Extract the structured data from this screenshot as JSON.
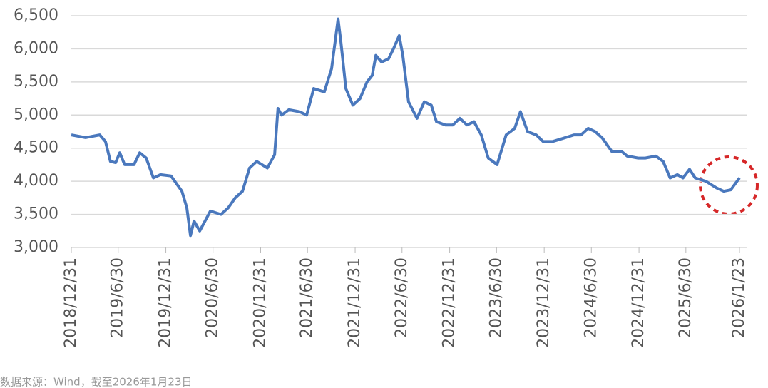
{
  "chart_data": {
    "type": "line",
    "x": [
      "2018/12/31",
      "2019/2/24",
      "2019/4/20",
      "2019/5/12",
      "2019/5/31",
      "2019/6/20",
      "2019/7/6",
      "2019/7/25",
      "2019/8/30",
      "2019/9/21",
      "2019/10/16",
      "2019/11/13",
      "2019/12/10",
      "2020/1/20",
      "2020/3/2",
      "2020/3/21",
      "2020/4/4",
      "2020/4/18",
      "2020/5/10",
      "2020/6/20",
      "2020/7/31",
      "2020/8/28",
      "2020/9/24",
      "2020/10/22",
      "2020/11/18",
      "2020/12/16",
      "2021/1/26",
      "2021/2/23",
      "2021/3/8",
      "2021/3/22",
      "2021/4/19",
      "2021/5/30",
      "2021/6/27",
      "2021/7/24",
      "2021/9/3",
      "2021/10/1",
      "2021/10/26",
      "2021/11/6",
      "2021/11/25",
      "2021/12/22",
      "2022/1/19",
      "2022/2/15",
      "2022/3/7",
      "2022/3/21",
      "2022/4/12",
      "2022/5/9",
      "2022/5/28",
      "2022/6/19",
      "2022/7/3",
      "2022/7/25",
      "2022/8/27",
      "2022/9/24",
      "2022/10/21",
      "2022/11/10",
      "2022/12/15",
      "2023/1/12",
      "2023/2/8",
      "2023/3/8",
      "2023/4/4",
      "2023/5/2",
      "2023/5/29",
      "2023/7/2",
      "2023/8/6",
      "2023/9/8",
      "2023/9/30",
      "2023/10/28",
      "2023/11/30",
      "2023/12/27",
      "2024/2/1",
      "2024/3/14",
      "2024/4/24",
      "2024/5/21",
      "2024/6/18",
      "2024/7/15",
      "2024/8/12",
      "2024/9/17",
      "2024/10/25",
      "2024/11/16",
      "2024/12/28",
      "2025/1/24",
      "2025/3/6",
      "2025/4/3",
      "2025/4/30",
      "2025/5/28",
      "2025/6/19",
      "2025/7/14",
      "2025/8/5",
      "2025/9/15",
      "2025/10/26",
      "2025/11/23",
      "2025/12/20",
      "2026/1/23"
    ],
    "values": [
      4700,
      4660,
      4700,
      4600,
      4300,
      4280,
      4430,
      4250,
      4250,
      4430,
      4350,
      4050,
      4100,
      4080,
      3850,
      3600,
      3180,
      3400,
      3250,
      3550,
      3500,
      3600,
      3750,
      3850,
      4200,
      4300,
      4200,
      4400,
      5100,
      5000,
      5080,
      5050,
      5000,
      5400,
      5350,
      5700,
      6450,
      6100,
      5400,
      5150,
      5250,
      5500,
      5600,
      5900,
      5800,
      5850,
      6000,
      6200,
      5900,
      5200,
      4950,
      5200,
      5150,
      4900,
      4850,
      4850,
      4950,
      4850,
      4900,
      4700,
      4350,
      4250,
      4700,
      4800,
      5050,
      4750,
      4700,
      4600,
      4600,
      4650,
      4700,
      4700,
      4800,
      4750,
      4650,
      4450,
      4450,
      4380,
      4350,
      4350,
      4380,
      4300,
      4050,
      4100,
      4050,
      4180,
      4050,
      4000,
      3900,
      3850,
      3870,
      4050
    ],
    "color": "#4a78bd",
    "xlim": [
      "2018/12/31",
      "2026/1/23"
    ],
    "xticks": [
      "2018/12/31",
      "2019/6/30",
      "2019/12/31",
      "2020/6/30",
      "2020/12/31",
      "2021/6/30",
      "2021/12/31",
      "2022/6/30",
      "2022/12/31",
      "2023/6/30",
      "2023/12/31",
      "2024/6/30",
      "2024/12/31",
      "2025/6/30",
      "2026/1/23"
    ],
    "ylim": [
      3000,
      6500
    ],
    "yticks": [
      {
        "value": 3000,
        "label": "3,000"
      },
      {
        "value": 3500,
        "label": "3,500"
      },
      {
        "value": 4000,
        "label": "4,000"
      },
      {
        "value": 4500,
        "label": "4,500"
      },
      {
        "value": 5000,
        "label": "5,000"
      },
      {
        "value": 5500,
        "label": "5,500"
      },
      {
        "value": 6000,
        "label": "6,000"
      },
      {
        "value": 6500,
        "label": "6,500"
      }
    ],
    "grid": true,
    "source": "数据来源：Wind，截至2026年1月23日"
  }
}
